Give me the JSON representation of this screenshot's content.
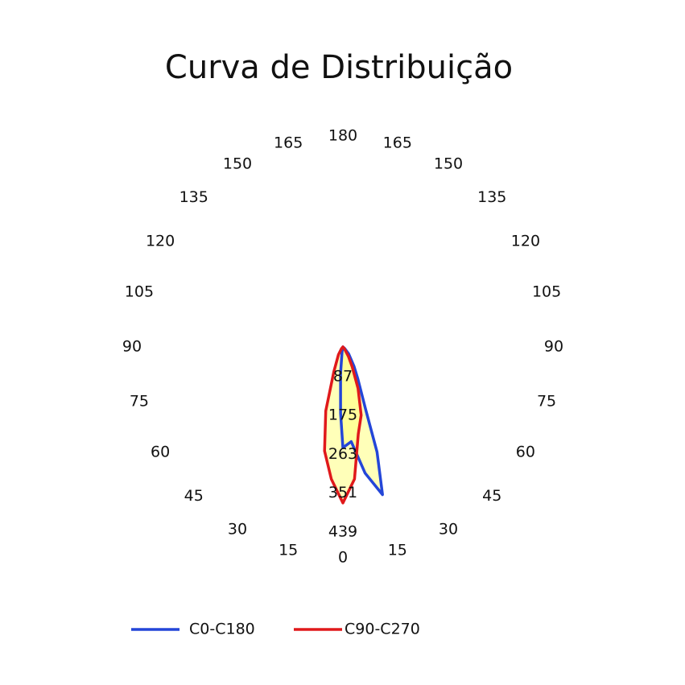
{
  "chart_data": {
    "type": "polar",
    "title": "Curva de Distribuição",
    "rlim": [
      0,
      439
    ],
    "rticks": [
      87,
      175,
      263,
      351,
      439
    ],
    "angle_ticks": [
      0,
      15,
      30,
      45,
      60,
      75,
      90,
      105,
      120,
      135,
      150,
      165,
      180
    ],
    "grid": true,
    "grid_color": "#7fe12c",
    "fill_color": "#ffff80",
    "legend": "bottom",
    "series": [
      {
        "name": "C0-C180",
        "color": "#2446d8",
        "x": [
          -10,
          -5,
          -2,
          0,
          5,
          10,
          15,
          18,
          20,
          25,
          30,
          40,
          50
        ],
        "values": [
          10,
          60,
          150,
          228,
          215,
          290,
          346,
          250,
          150,
          80,
          50,
          20,
          5
        ]
      },
      {
        "name": "C90-C270",
        "color": "#e0191b",
        "x": [
          -40,
          -30,
          -20,
          -15,
          -10,
          -5,
          0,
          5,
          10,
          15,
          20,
          25,
          30,
          40
        ],
        "values": [
          5,
          20,
          60,
          150,
          239,
          300,
          353,
          300,
          200,
          160,
          100,
          50,
          25,
          5
        ]
      }
    ]
  }
}
